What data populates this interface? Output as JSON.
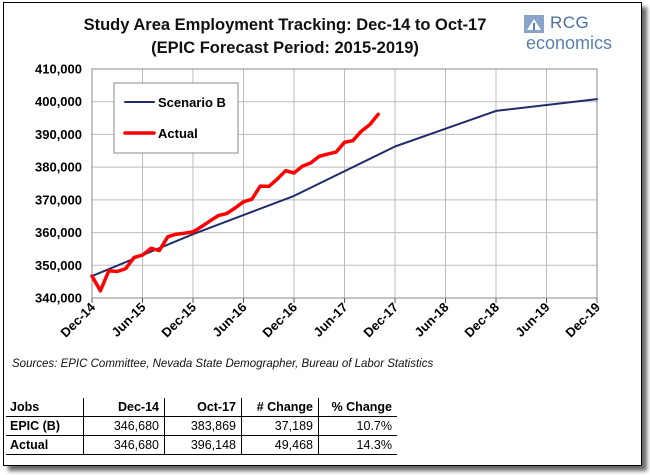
{
  "chart_data": {
    "type": "line",
    "title": "Study Area Employment Tracking: Dec-14 to Oct-17",
    "subtitle": "(EPIC Forecast Period: 2015-2019)",
    "ylim": [
      340000,
      410000
    ],
    "yticks": [
      "340,000",
      "350,000",
      "360,000",
      "370,000",
      "380,000",
      "390,000",
      "400,000",
      "410,000"
    ],
    "yvalues": [
      340000,
      350000,
      360000,
      370000,
      380000,
      390000,
      400000,
      410000
    ],
    "xlim": [
      0,
      60
    ],
    "xticks": [
      {
        "label": "Dec-14",
        "t": 0
      },
      {
        "label": "Jun-15",
        "t": 6
      },
      {
        "label": "Dec-15",
        "t": 12
      },
      {
        "label": "Jun-16",
        "t": 18
      },
      {
        "label": "Dec-16",
        "t": 24
      },
      {
        "label": "Jun-17",
        "t": 30
      },
      {
        "label": "Dec-17",
        "t": 36
      },
      {
        "label": "Jun-18",
        "t": 42
      },
      {
        "label": "Dec-18",
        "t": 48
      },
      {
        "label": "Jun-19",
        "t": 54
      },
      {
        "label": "Dec-19",
        "t": 60
      }
    ],
    "legend_position": "top-left",
    "series": [
      {
        "name": "Scenario B",
        "color": "#1f2e6b",
        "points": [
          [
            0,
            346680
          ],
          [
            12,
            359500
          ],
          [
            24,
            371200
          ],
          [
            36,
            386300
          ],
          [
            48,
            397200
          ],
          [
            60,
            400800
          ]
        ]
      },
      {
        "name": "Actual",
        "color": "#ff0000",
        "points": [
          [
            0,
            346680
          ],
          [
            1,
            342200
          ],
          [
            2,
            348300
          ],
          [
            3,
            348100
          ],
          [
            4,
            349000
          ],
          [
            5,
            352400
          ],
          [
            6,
            353100
          ],
          [
            7,
            355200
          ],
          [
            8,
            354500
          ],
          [
            9,
            358700
          ],
          [
            10,
            359500
          ],
          [
            11,
            359800
          ],
          [
            12,
            360200
          ],
          [
            13,
            361800
          ],
          [
            14,
            363500
          ],
          [
            15,
            365200
          ],
          [
            16,
            365800
          ],
          [
            17,
            367500
          ],
          [
            18,
            369400
          ],
          [
            19,
            370200
          ],
          [
            20,
            374200
          ],
          [
            21,
            374100
          ],
          [
            22,
            376300
          ],
          [
            23,
            378900
          ],
          [
            24,
            378200
          ],
          [
            25,
            380300
          ],
          [
            26,
            381300
          ],
          [
            27,
            383300
          ],
          [
            28,
            384000
          ],
          [
            29,
            384600
          ],
          [
            30,
            387600
          ],
          [
            31,
            388100
          ],
          [
            32,
            391000
          ],
          [
            33,
            393000
          ],
          [
            34,
            396148
          ]
        ]
      }
    ]
  },
  "logo": {
    "top": "RCG",
    "bottom": "economics"
  },
  "source": "Sources: EPIC Committee, Nevada State Demographer, Bureau of Labor Statistics",
  "table": {
    "headers": [
      "Jobs",
      "Dec-14",
      "Oct-17",
      "# Change",
      "% Change"
    ],
    "rows": [
      {
        "label": "EPIC (B)",
        "dec14": "346,680",
        "oct17": "383,869",
        "change": "37,189",
        "pct": "10.7%"
      },
      {
        "label": "Actual",
        "dec14": "346,680",
        "oct17": "396,148",
        "change": "49,468",
        "pct": "14.3%"
      }
    ]
  }
}
